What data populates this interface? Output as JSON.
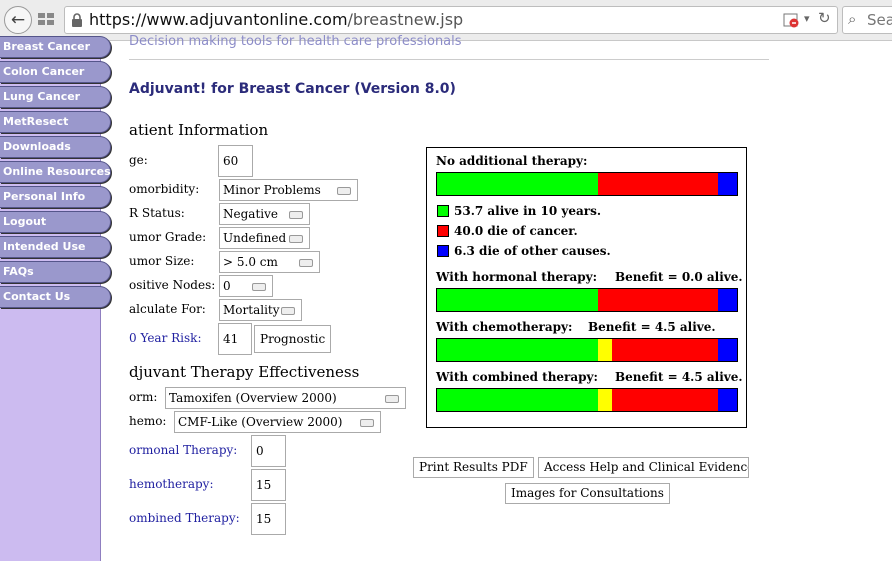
{
  "browser": {
    "url_host": "https://www.adjuvantonline.com",
    "url_path": "/breastnew.jsp",
    "search_placeholder": "Sea"
  },
  "sidebar": {
    "items": [
      {
        "label": "Breast Cancer"
      },
      {
        "label": "Colon Cancer"
      },
      {
        "label": "Lung Cancer"
      },
      {
        "label": "MetResect"
      },
      {
        "label": "Downloads"
      },
      {
        "label": "Online Resources"
      },
      {
        "label": "Personal Info"
      },
      {
        "label": "Logout"
      },
      {
        "label": "Intended Use"
      },
      {
        "label": "FAQs"
      },
      {
        "label": "Contact Us"
      }
    ]
  },
  "header": {
    "tagline": "Decision making tools for health care professionals",
    "title": "Adjuvant! for Breast Cancer (Version 8.0)"
  },
  "patient": {
    "heading": "atient Information",
    "age_label": "ge:",
    "age_value": "60",
    "comorbidity_label": "omorbidity:",
    "comorbidity_value": "Minor Problems",
    "er_label": "R Status:",
    "er_value": "Negative",
    "grade_label": "umor Grade:",
    "grade_value": "Undefined",
    "size_label": "umor Size:",
    "size_value": "> 5.0 cm",
    "nodes_label": "ositive Nodes:",
    "nodes_value": "0",
    "calc_label": "alculate For:",
    "calc_value": "Mortality",
    "risk_label": "0 Year Risk:",
    "risk_value": "41",
    "prognostic_label": "Prognostic"
  },
  "therapy": {
    "heading": "djuvant Therapy Effectiveness",
    "horm_label": "orm:",
    "horm_value": "Tamoxifen (Overview 2000)",
    "chemo_label": "hemo:",
    "chemo_value": "CMF-Like (Overview 2000)",
    "hormonal_label": "ormonal Therapy:",
    "hormonal_value": "0",
    "chemotherapy_label": "hemotherapy:",
    "chemotherapy_value": "15",
    "combined_label": "ombined Therapy:",
    "combined_value": "15"
  },
  "results": {
    "colors": {
      "alive": "#00ff00",
      "cancer": "#ff0000",
      "other": "#0000ff",
      "benefit": "#ffff00"
    },
    "no_therapy_label": "No additional therapy:",
    "legend_alive": "53.7 alive in 10 years.",
    "legend_cancer": "40.0 die of cancer.",
    "legend_other": "6.3 die of other causes.",
    "hormonal_label": "With hormonal therapy:",
    "hormonal_benefit": "Benefit = 0.0 alive.",
    "chemo_label": "With chemotherapy:",
    "chemo_benefit": "Benefit = 4.5 alive.",
    "combined_label": "With combined therapy:",
    "combined_benefit": "Benefit = 4.5 alive.",
    "bars": {
      "none": {
        "alive": 53.7,
        "benefit": 0,
        "cancer": 40.0,
        "other": 6.3
      },
      "hormonal": {
        "alive": 53.7,
        "benefit": 0,
        "cancer": 40.0,
        "other": 6.3
      },
      "chemo": {
        "alive": 53.7,
        "benefit": 4.5,
        "cancer": 35.5,
        "other": 6.3
      },
      "combined": {
        "alive": 53.7,
        "benefit": 4.5,
        "cancer": 35.5,
        "other": 6.3
      }
    }
  },
  "actions": {
    "print_label": "Print Results PDF",
    "help_label": "Access Help and Clinical Evidence",
    "images_label": "Images for Consultations"
  }
}
